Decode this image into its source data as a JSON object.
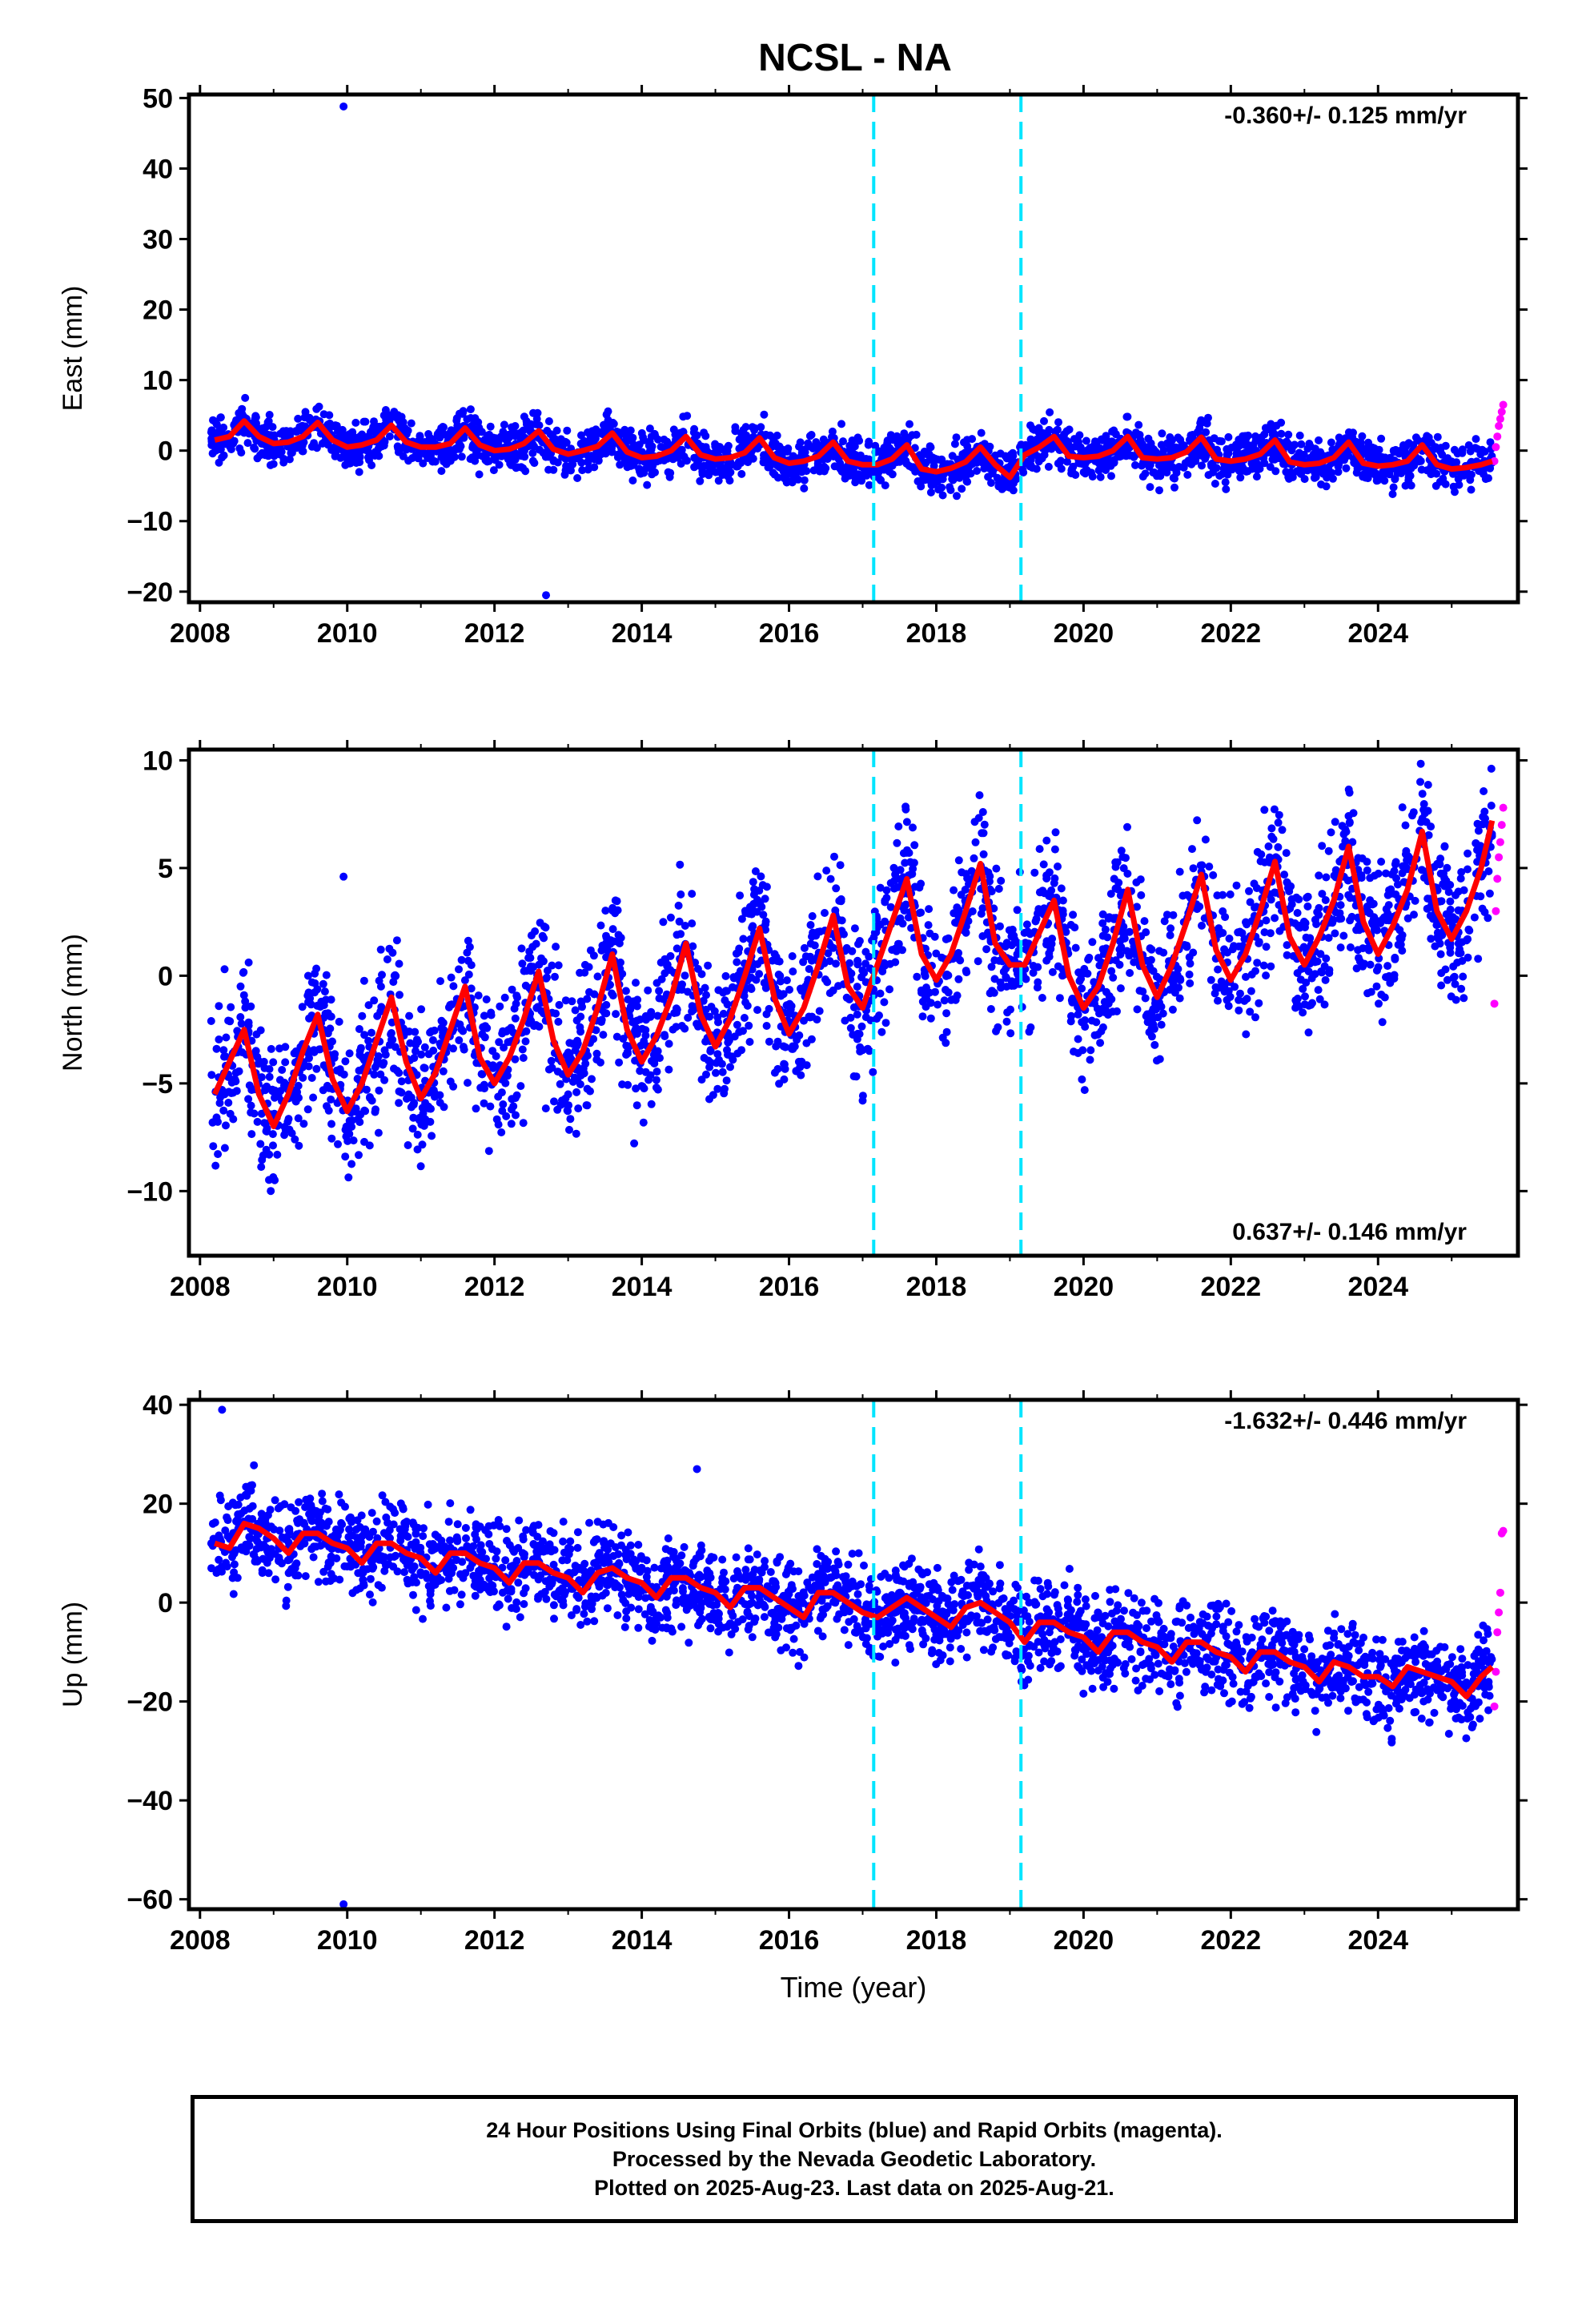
{
  "title": "NCSL - NA",
  "footer": {
    "line1": "24 Hour Positions Using Final Orbits (blue) and Rapid Orbits (magenta).",
    "line2": "Processed by the Nevada Geodetic Laboratory.",
    "line3": "Plotted on 2025-Aug-23. Last data on 2025-Aug-21."
  },
  "colors": {
    "final": "#0000ff",
    "rapid": "#ff00ff",
    "model": "#ff0000",
    "step": "#00e5ff"
  },
  "chart_data": [
    {
      "type": "scatter",
      "component": "east",
      "ylabel": "East (mm)",
      "xlabel": "",
      "xlim": [
        2007.85,
        2025.9
      ],
      "ylim": [
        -21.5,
        50.5
      ],
      "xticks": [
        2008,
        2010,
        2012,
        2014,
        2016,
        2018,
        2020,
        2022,
        2024
      ],
      "yticks": [
        -20,
        -10,
        0,
        10,
        20,
        30,
        40,
        50
      ],
      "rate_label": "-0.360+/- 0.125 mm/yr",
      "rate_position": "top-right",
      "step_epochs": [
        2017.15,
        2019.15
      ],
      "series": [
        {
          "x": [
            2008.2,
            2008.4,
            2008.6,
            2008.8,
            2009.0,
            2009.2,
            2009.4,
            2009.6,
            2009.8,
            2010.0,
            2010.2,
            2010.4,
            2010.6,
            2010.8,
            2011.0,
            2011.2,
            2011.4,
            2011.6,
            2011.8,
            2012.0,
            2012.2,
            2012.4,
            2012.6,
            2012.8,
            2013.0,
            2013.2,
            2013.4,
            2013.6,
            2013.8,
            2014.0,
            2014.2,
            2014.4,
            2014.6,
            2014.8,
            2015.0,
            2015.2,
            2015.4,
            2015.6,
            2015.8,
            2016.0,
            2016.2,
            2016.4,
            2016.6,
            2016.8,
            2017.0,
            2017.2,
            2017.4,
            2017.6,
            2017.8,
            2018.0,
            2018.2,
            2018.4,
            2018.6,
            2018.8,
            2019.0,
            2019.2,
            2019.4,
            2019.6,
            2019.8,
            2020.0,
            2020.2,
            2020.4,
            2020.6,
            2020.8,
            2021.0,
            2021.2,
            2021.4,
            2021.6,
            2021.8,
            2022.0,
            2022.2,
            2022.4,
            2022.6,
            2022.8,
            2023.0,
            2023.2,
            2023.4,
            2023.6,
            2023.8,
            2024.0,
            2024.2,
            2024.4,
            2024.6,
            2024.8,
            2025.0,
            2025.2,
            2025.4,
            2025.55
          ],
          "y": [
            1.5,
            2.0,
            4.2,
            2.0,
            1.0,
            1.2,
            2.0,
            4.0,
            1.5,
            0.5,
            0.8,
            1.5,
            3.6,
            1.2,
            0.5,
            0.5,
            1.0,
            3.2,
            0.8,
            0.0,
            0.2,
            1.0,
            2.8,
            0.2,
            -0.5,
            0.0,
            0.6,
            2.5,
            -0.2,
            -1.0,
            -0.8,
            0.0,
            2.0,
            -0.6,
            -1.2,
            -1.0,
            -0.3,
            1.8,
            -1.0,
            -1.8,
            -1.5,
            -0.8,
            1.2,
            -1.5,
            -2.0,
            -2.0,
            -1.2,
            0.8,
            -2.6,
            -3.0,
            -2.5,
            -1.6,
            0.5,
            -2.0,
            -3.8,
            -0.6,
            0.5,
            2.0,
            -0.8,
            -1.0,
            -0.8,
            0.0,
            2.0,
            -1.0,
            -1.2,
            -1.0,
            -0.2,
            1.9,
            -1.2,
            -1.5,
            -1.2,
            -0.5,
            1.5,
            -1.6,
            -2.0,
            -1.8,
            -1.0,
            1.2,
            -1.8,
            -2.2,
            -2.0,
            -1.5,
            0.8,
            -2.0,
            -2.6,
            -2.4,
            -2.0,
            -1.5
          ],
          "role": "final"
        },
        {
          "x": [
            2009.95,
            2012.7
          ],
          "y": [
            48.8,
            -20.5
          ],
          "role": "final-outliers"
        },
        {
          "x": [
            2025.58,
            2025.6,
            2025.62,
            2025.64,
            2025.66,
            2025.68,
            2025.7
          ],
          "y": [
            -1.5,
            0.5,
            2.0,
            3.5,
            4.5,
            5.5,
            6.5
          ],
          "role": "rapid"
        }
      ]
    },
    {
      "type": "scatter",
      "component": "north",
      "ylabel": "North (mm)",
      "xlabel": "",
      "xlim": [
        2007.85,
        2025.9
      ],
      "ylim": [
        -13,
        10.5
      ],
      "xticks": [
        2008,
        2010,
        2012,
        2014,
        2016,
        2018,
        2020,
        2022,
        2024
      ],
      "yticks": [
        -10,
        -5,
        0,
        5,
        10
      ],
      "rate_label": "0.637+/- 0.146 mm/yr",
      "rate_position": "bottom-right",
      "step_epochs": [
        2017.15,
        2019.15
      ],
      "series": [
        {
          "x": [
            2008.2,
            2008.4,
            2008.6,
            2008.8,
            2009.0,
            2009.2,
            2009.4,
            2009.6,
            2009.8,
            2010.0,
            2010.2,
            2010.4,
            2010.6,
            2010.8,
            2011.0,
            2011.2,
            2011.4,
            2011.6,
            2011.8,
            2012.0,
            2012.2,
            2012.4,
            2012.6,
            2012.8,
            2013.0,
            2013.2,
            2013.4,
            2013.6,
            2013.8,
            2014.0,
            2014.2,
            2014.4,
            2014.6,
            2014.8,
            2015.0,
            2015.2,
            2015.4,
            2015.6,
            2015.8,
            2016.0,
            2016.2,
            2016.4,
            2016.6,
            2016.8,
            2017.0,
            2017.2,
            2017.4,
            2017.6,
            2017.8,
            2018.0,
            2018.2,
            2018.4,
            2018.6,
            2018.8,
            2019.0,
            2019.2,
            2019.4,
            2019.6,
            2019.8,
            2020.0,
            2020.2,
            2020.4,
            2020.6,
            2020.8,
            2021.0,
            2021.2,
            2021.4,
            2021.6,
            2021.8,
            2022.0,
            2022.2,
            2022.4,
            2022.6,
            2022.8,
            2023.0,
            2023.2,
            2023.4,
            2023.6,
            2023.8,
            2024.0,
            2024.2,
            2024.4,
            2024.6,
            2024.8,
            2025.0,
            2025.2,
            2025.4,
            2025.55
          ],
          "y": [
            -5.5,
            -4.0,
            -2.5,
            -5.5,
            -7.0,
            -5.5,
            -3.5,
            -1.8,
            -4.8,
            -6.3,
            -5.0,
            -3.0,
            -1.0,
            -4.0,
            -5.7,
            -4.5,
            -2.5,
            -0.5,
            -3.8,
            -5.0,
            -3.8,
            -2.0,
            0.2,
            -3.0,
            -4.6,
            -3.5,
            -1.5,
            1.0,
            -2.5,
            -4.0,
            -2.8,
            -1.0,
            1.5,
            -1.8,
            -3.3,
            -2.0,
            0.0,
            2.2,
            -1.0,
            -2.7,
            -1.5,
            0.5,
            2.8,
            -0.5,
            -1.5,
            0.5,
            2.5,
            4.5,
            1.0,
            -0.2,
            1.0,
            3.0,
            5.2,
            1.5,
            0.5,
            0.5,
            2.0,
            3.5,
            0.0,
            -1.5,
            -0.5,
            1.5,
            4.0,
            0.5,
            -1.0,
            0.5,
            2.5,
            4.7,
            1.2,
            -0.2,
            1.0,
            3.0,
            5.3,
            1.8,
            0.5,
            1.8,
            3.5,
            6.0,
            2.5,
            1.0,
            2.3,
            4.0,
            6.7,
            3.0,
            1.7,
            3.0,
            5.0,
            7.2
          ],
          "role": "final"
        },
        {
          "x": [
            2009.95,
            2017.0
          ],
          "y": [
            4.6,
            -5.8
          ],
          "role": "final-outliers"
        },
        {
          "x": [
            2025.58,
            2025.6,
            2025.62,
            2025.64,
            2025.66,
            2025.68,
            2025.7
          ],
          "y": [
            -1.3,
            3.0,
            4.5,
            5.5,
            6.2,
            7.0,
            7.8
          ],
          "role": "rapid"
        }
      ]
    },
    {
      "type": "scatter",
      "component": "up",
      "ylabel": "Up (mm)",
      "xlabel": "Time (year)",
      "xlim": [
        2007.85,
        2025.9
      ],
      "ylim": [
        -62,
        41
      ],
      "xticks": [
        2008,
        2010,
        2012,
        2014,
        2016,
        2018,
        2020,
        2022,
        2024
      ],
      "yticks": [
        -60,
        -40,
        -20,
        0,
        20,
        40
      ],
      "rate_label": "-1.632+/- 0.446 mm/yr",
      "rate_position": "top-right",
      "step_epochs": [
        2017.15,
        2019.15
      ],
      "series": [
        {
          "x": [
            2008.2,
            2008.4,
            2008.6,
            2008.8,
            2009.0,
            2009.2,
            2009.4,
            2009.6,
            2009.8,
            2010.0,
            2010.2,
            2010.4,
            2010.6,
            2010.8,
            2011.0,
            2011.2,
            2011.4,
            2011.6,
            2011.8,
            2012.0,
            2012.2,
            2012.4,
            2012.6,
            2012.8,
            2013.0,
            2013.2,
            2013.4,
            2013.6,
            2013.8,
            2014.0,
            2014.2,
            2014.4,
            2014.6,
            2014.8,
            2015.0,
            2015.2,
            2015.4,
            2015.6,
            2015.8,
            2016.0,
            2016.2,
            2016.4,
            2016.6,
            2016.8,
            2017.0,
            2017.2,
            2017.4,
            2017.6,
            2017.8,
            2018.0,
            2018.2,
            2018.4,
            2018.6,
            2018.8,
            2019.0,
            2019.2,
            2019.4,
            2019.6,
            2019.8,
            2020.0,
            2020.2,
            2020.4,
            2020.6,
            2020.8,
            2021.0,
            2021.2,
            2021.4,
            2021.6,
            2021.8,
            2022.0,
            2022.2,
            2022.4,
            2022.6,
            2022.8,
            2023.0,
            2023.2,
            2023.4,
            2023.6,
            2023.8,
            2024.0,
            2024.2,
            2024.4,
            2024.6,
            2024.8,
            2025.0,
            2025.2,
            2025.4,
            2025.55
          ],
          "y": [
            12,
            11,
            16,
            15,
            13,
            10,
            14,
            14,
            12,
            11,
            8,
            12,
            12,
            10,
            9,
            6,
            10,
            10,
            8,
            7,
            4,
            8,
            8,
            6,
            5,
            2,
            6,
            7,
            5,
            4,
            1,
            5,
            5,
            3,
            2,
            -1,
            3,
            3,
            1,
            -1,
            -3,
            2,
            2,
            0,
            -2,
            -3,
            -1,
            1,
            -1,
            -3,
            -5,
            -1,
            0,
            -2,
            -4,
            -8,
            -4,
            -4,
            -6,
            -7,
            -10,
            -6,
            -6,
            -8,
            -9,
            -12,
            -8,
            -8,
            -10,
            -11,
            -14,
            -10,
            -10,
            -12,
            -13,
            -16,
            -12,
            -13,
            -15,
            -15,
            -17,
            -13,
            -14,
            -15,
            -16,
            -19,
            -15,
            -13
          ],
          "role": "final"
        },
        {
          "x": [
            2008.3,
            2009.95,
            2014.75
          ],
          "y": [
            39,
            -61,
            27
          ],
          "role": "final-outliers"
        },
        {
          "x": [
            2025.58,
            2025.6,
            2025.62,
            2025.64,
            2025.66,
            2025.68,
            2025.7
          ],
          "y": [
            -21,
            -14,
            -6,
            -2,
            2,
            14,
            14.5
          ],
          "role": "rapid"
        }
      ]
    }
  ]
}
